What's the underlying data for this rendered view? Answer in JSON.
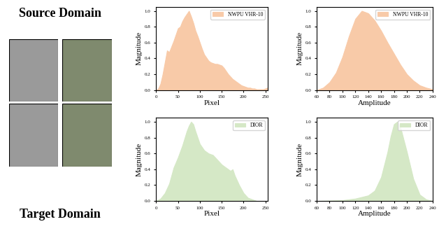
{
  "row_labels": [
    "Source Domain",
    "Target Domain"
  ],
  "chart_data": [
    {
      "type": "area",
      "xlabel": "Pixel",
      "ylabel": "Magnitude",
      "x": [
        0,
        5,
        10,
        15,
        20,
        25,
        30,
        35,
        40,
        45,
        50,
        55,
        60,
        65,
        70,
        75,
        80,
        85,
        90,
        95,
        100,
        105,
        110,
        115,
        120,
        125,
        130,
        135,
        140,
        145,
        150,
        155,
        160,
        165,
        170,
        175,
        180,
        185,
        190,
        195,
        200,
        205,
        210,
        215,
        220,
        225,
        230,
        235,
        240,
        245,
        250,
        255
      ],
      "series": [
        {
          "name": "NWPU VHR-10",
          "color": "#f8caa8",
          "values": [
            0.0,
            0.02,
            0.08,
            0.2,
            0.35,
            0.5,
            0.48,
            0.55,
            0.62,
            0.7,
            0.78,
            0.8,
            0.87,
            0.92,
            0.96,
            1.0,
            0.93,
            0.85,
            0.75,
            0.68,
            0.6,
            0.52,
            0.45,
            0.41,
            0.37,
            0.35,
            0.34,
            0.33,
            0.33,
            0.32,
            0.31,
            0.28,
            0.24,
            0.2,
            0.17,
            0.14,
            0.12,
            0.1,
            0.08,
            0.06,
            0.05,
            0.04,
            0.03,
            0.03,
            0.02,
            0.02,
            0.01,
            0.01,
            0.01,
            0.01,
            0.02,
            0.03
          ]
        }
      ],
      "xlim": [
        0,
        255
      ],
      "xticks": [
        0,
        50,
        100,
        150,
        200,
        250
      ],
      "ylim": [
        0,
        1.05
      ],
      "yticks": [
        {
          "value": 0,
          "label": "0.0"
        },
        {
          "value": 0.2,
          "label": "0.2"
        },
        {
          "value": 0.4,
          "label": "0.4"
        },
        {
          "value": 0.6,
          "label": "0.6"
        },
        {
          "value": 0.8,
          "label": "0.8"
        },
        {
          "value": 1,
          "label": "1.0"
        }
      ],
      "legend": "upper right"
    },
    {
      "type": "area",
      "xlabel": "Amplitude",
      "ylabel": "Magnitude",
      "x": [
        60,
        70,
        80,
        90,
        100,
        110,
        120,
        130,
        140,
        150,
        160,
        170,
        180,
        190,
        200,
        210,
        220,
        230,
        240
      ],
      "series": [
        {
          "name": "NWPU VHR-10",
          "color": "#f8caa8",
          "values": [
            0.0,
            0.03,
            0.1,
            0.22,
            0.42,
            0.68,
            0.9,
            1.0,
            0.97,
            0.88,
            0.75,
            0.6,
            0.46,
            0.32,
            0.2,
            0.12,
            0.06,
            0.03,
            0.01
          ]
        }
      ],
      "xlim": [
        60,
        240
      ],
      "xticks": [
        60,
        80,
        100,
        120,
        140,
        160,
        180,
        200,
        220,
        240
      ],
      "ylim": [
        0,
        1.05
      ],
      "yticks": [
        {
          "value": 0,
          "label": "0.0"
        },
        {
          "value": 0.2,
          "label": "0.2"
        },
        {
          "value": 0.4,
          "label": "0.4"
        },
        {
          "value": 0.6,
          "label": "0.6"
        },
        {
          "value": 0.8,
          "label": "0.8"
        },
        {
          "value": 1,
          "label": "1.0"
        }
      ],
      "legend": "upper right"
    },
    {
      "type": "area",
      "xlabel": "Pixel",
      "ylabel": "Magnitude",
      "x": [
        0,
        10,
        20,
        30,
        40,
        50,
        60,
        70,
        75,
        80,
        85,
        90,
        100,
        110,
        120,
        130,
        140,
        150,
        160,
        170,
        175,
        180,
        190,
        200,
        210,
        220,
        230,
        240,
        250,
        255
      ],
      "series": [
        {
          "name": "DIOR",
          "color": "#d5e8c6",
          "values": [
            0.0,
            0.03,
            0.1,
            0.22,
            0.42,
            0.55,
            0.7,
            0.88,
            0.95,
            1.0,
            0.97,
            0.88,
            0.72,
            0.64,
            0.6,
            0.58,
            0.52,
            0.46,
            0.42,
            0.38,
            0.4,
            0.32,
            0.2,
            0.1,
            0.04,
            0.02,
            0.0,
            0.0,
            0.0,
            0.0
          ]
        }
      ],
      "xlim": [
        0,
        255
      ],
      "xticks": [
        0,
        50,
        100,
        150,
        200,
        250
      ],
      "ylim": [
        0,
        1.05
      ],
      "yticks": [
        {
          "value": 0,
          "label": "0.0"
        },
        {
          "value": 0.2,
          "label": "0.2"
        },
        {
          "value": 0.4,
          "label": "0.4"
        },
        {
          "value": 0.6,
          "label": "0.6"
        },
        {
          "value": 0.8,
          "label": "0.8"
        },
        {
          "value": 1,
          "label": "1.0"
        }
      ],
      "legend": "upper right"
    },
    {
      "type": "area",
      "xlabel": "Amplitude",
      "ylabel": "Magnitude",
      "x": [
        60,
        100,
        120,
        140,
        150,
        160,
        170,
        175,
        180,
        185,
        190,
        200,
        210,
        220,
        230,
        240
      ],
      "series": [
        {
          "name": "DIOR",
          "color": "#d5e8c6",
          "values": [
            0.0,
            0.01,
            0.03,
            0.07,
            0.13,
            0.3,
            0.62,
            0.82,
            0.97,
            1.0,
            0.93,
            0.62,
            0.28,
            0.08,
            0.02,
            0.0
          ]
        }
      ],
      "xlim": [
        60,
        240
      ],
      "xticks": [
        60,
        80,
        100,
        120,
        140,
        160,
        180,
        200,
        220,
        240
      ],
      "ylim": [
        0,
        1.05
      ],
      "yticks": [
        {
          "value": 0,
          "label": "0.0"
        },
        {
          "value": 0.2,
          "label": "0.2"
        },
        {
          "value": 0.4,
          "label": "0.4"
        },
        {
          "value": 0.6,
          "label": "0.6"
        },
        {
          "value": 0.8,
          "label": "0.8"
        },
        {
          "value": 1,
          "label": "1.0"
        }
      ],
      "legend": "upper right"
    }
  ]
}
